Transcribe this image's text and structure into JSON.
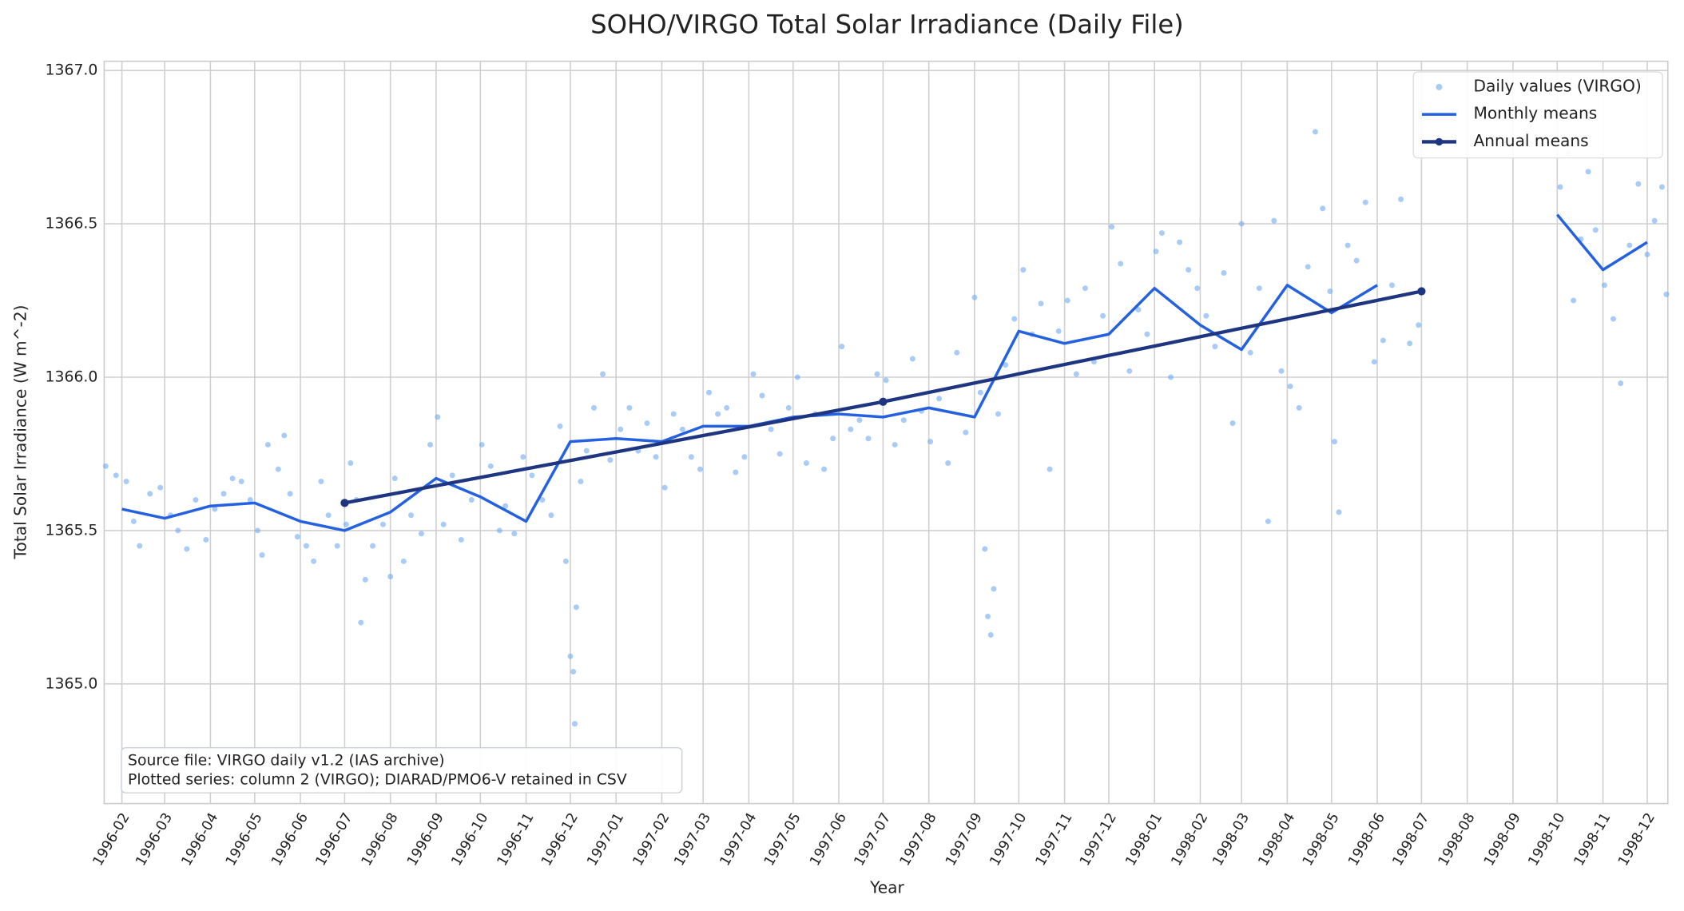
{
  "chart_data": {
    "type": "line",
    "title": "SOHO/VIRGO Total Solar Irradiance (Daily File)",
    "xlabel": "Year",
    "ylabel": "Total Solar Irradiance (W m^-2)",
    "xlim": [
      "1996-01-20",
      "1998-12-15"
    ],
    "ylim": [
      1364.61,
      1367.03
    ],
    "xticks": [
      "1996-02",
      "1996-03",
      "1996-04",
      "1996-05",
      "1996-06",
      "1996-07",
      "1996-08",
      "1996-09",
      "1996-10",
      "1996-11",
      "1996-12",
      "1997-01",
      "1997-02",
      "1997-03",
      "1997-04",
      "1997-05",
      "1997-06",
      "1997-07",
      "1997-08",
      "1997-09",
      "1997-10",
      "1997-11",
      "1997-12",
      "1998-01",
      "1998-02",
      "1998-03",
      "1998-04",
      "1998-05",
      "1998-06",
      "1998-07",
      "1998-08",
      "1998-09",
      "1998-10",
      "1998-11",
      "1998-12"
    ],
    "yticks": [
      {
        "value": 1365,
        "label": "1365.0"
      },
      1365.5,
      {
        "value": 1366,
        "label": "1366.0"
      },
      1366.5,
      {
        "value": 1367,
        "label": "1367.0"
      }
    ],
    "grid": true,
    "legend": "upper right",
    "annotation": [
      "Source file: VIRGO daily v1.2 (IAS archive)",
      "Plotted series: column 2 (VIRGO); DIARAD/PMO6-V retained in CSV"
    ],
    "series": [
      {
        "name": "Daily values (VIRGO)",
        "type": "scatter",
        "color": "#6fa8f2",
        "x": [
          "1996-01-21",
          "1996-01-28",
          "1996-02-04",
          "1996-02-09",
          "1996-02-13",
          "1996-02-20",
          "1996-02-27",
          "1996-03-05",
          "1996-03-10",
          "1996-03-16",
          "1996-03-22",
          "1996-03-29",
          "1996-04-04",
          "1996-04-10",
          "1996-04-16",
          "1996-04-22",
          "1996-04-28",
          "1996-05-03",
          "1996-05-06",
          "1996-05-10",
          "1996-05-17",
          "1996-05-21",
          "1996-05-25",
          "1996-05-30",
          "1996-06-05",
          "1996-06-10",
          "1996-06-15",
          "1996-06-20",
          "1996-06-26",
          "1996-07-02",
          "1996-07-05",
          "1996-07-09",
          "1996-07-12",
          "1996-07-15",
          "1996-07-20",
          "1996-07-27",
          "1996-08-01",
          "1996-08-04",
          "1996-08-10",
          "1996-08-15",
          "1996-08-22",
          "1996-08-28",
          "1996-09-02",
          "1996-09-06",
          "1996-09-12",
          "1996-09-18",
          "1996-09-25",
          "1996-10-02",
          "1996-10-08",
          "1996-10-14",
          "1996-10-18",
          "1996-10-24",
          "1996-10-30",
          "1996-11-05",
          "1996-11-12",
          "1996-11-18",
          "1996-11-24",
          "1996-11-28",
          "1996-12-01",
          "1996-12-03",
          "1996-12-04",
          "1996-12-05",
          "1996-12-08",
          "1996-12-12",
          "1996-12-17",
          "1996-12-23",
          "1996-12-28",
          "1997-01-04",
          "1997-01-10",
          "1997-01-16",
          "1997-01-22",
          "1997-01-28",
          "1997-02-03",
          "1997-02-09",
          "1997-02-15",
          "1997-02-21",
          "1997-02-27",
          "1997-03-05",
          "1997-03-11",
          "1997-03-17",
          "1997-03-23",
          "1997-03-29",
          "1997-04-04",
          "1997-04-10",
          "1997-04-16",
          "1997-04-22",
          "1997-04-28",
          "1997-05-04",
          "1997-05-10",
          "1997-05-16",
          "1997-05-22",
          "1997-05-28",
          "1997-06-03",
          "1997-06-09",
          "1997-06-15",
          "1997-06-21",
          "1997-06-27",
          "1997-07-03",
          "1997-07-09",
          "1997-07-15",
          "1997-07-21",
          "1997-07-27",
          "1997-08-02",
          "1997-08-08",
          "1997-08-14",
          "1997-08-20",
          "1997-08-26",
          "1997-09-01",
          "1997-09-05",
          "1997-09-08",
          "1997-09-10",
          "1997-09-12",
          "1997-09-14",
          "1997-09-17",
          "1997-09-22",
          "1997-09-28",
          "1997-10-04",
          "1997-10-10",
          "1997-10-16",
          "1997-10-22",
          "1997-10-28",
          "1997-11-03",
          "1997-11-09",
          "1997-11-15",
          "1997-11-21",
          "1997-11-27",
          "1997-12-03",
          "1997-12-09",
          "1997-12-15",
          "1997-12-21",
          "1997-12-27",
          "1998-01-02",
          "1998-01-06",
          "1998-01-12",
          "1998-01-18",
          "1998-01-24",
          "1998-01-30",
          "1998-02-05",
          "1998-02-11",
          "1998-02-17",
          "1998-02-23",
          "1998-03-01",
          "1998-03-07",
          "1998-03-13",
          "1998-03-19",
          "1998-03-23",
          "1998-03-28",
          "1998-04-03",
          "1998-04-09",
          "1998-04-15",
          "1998-04-20",
          "1998-04-25",
          "1998-04-30",
          "1998-05-03",
          "1998-05-06",
          "1998-05-12",
          "1998-05-18",
          "1998-05-24",
          "1998-05-30",
          "1998-06-05",
          "1998-06-11",
          "1998-06-17",
          "1998-06-23",
          "1998-06-29",
          "1998-10-03",
          "1998-10-08",
          "1998-10-12",
          "1998-10-17",
          "1998-10-22",
          "1998-10-27",
          "1998-11-02",
          "1998-11-08",
          "1998-11-13",
          "1998-11-19",
          "1998-11-25",
          "1998-12-01",
          "1998-12-06",
          "1998-12-11",
          "1998-12-14"
        ],
        "values": [
          1365.71,
          1365.68,
          1365.66,
          1365.53,
          1365.45,
          1365.62,
          1365.64,
          1365.55,
          1365.5,
          1365.44,
          1365.6,
          1365.47,
          1365.57,
          1365.62,
          1365.67,
          1365.66,
          1365.6,
          1365.5,
          1365.42,
          1365.78,
          1365.7,
          1365.81,
          1365.62,
          1365.48,
          1365.45,
          1365.4,
          1365.66,
          1365.55,
          1365.45,
          1365.52,
          1365.72,
          1365.6,
          1365.2,
          1365.34,
          1365.45,
          1365.52,
          1365.35,
          1365.67,
          1365.4,
          1365.55,
          1365.49,
          1365.78,
          1365.87,
          1365.52,
          1365.68,
          1365.47,
          1365.6,
          1365.78,
          1365.71,
          1365.5,
          1365.58,
          1365.49,
          1365.74,
          1365.68,
          1365.6,
          1365.55,
          1365.84,
          1365.4,
          1365.09,
          1365.04,
          1364.87,
          1365.25,
          1365.66,
          1365.76,
          1365.9,
          1366.01,
          1365.73,
          1365.83,
          1365.9,
          1365.76,
          1365.85,
          1365.74,
          1365.64,
          1365.88,
          1365.83,
          1365.74,
          1365.7,
          1365.95,
          1365.88,
          1365.9,
          1365.69,
          1365.74,
          1366.01,
          1365.94,
          1365.83,
          1365.75,
          1365.9,
          1366.0,
          1365.72,
          1365.88,
          1365.7,
          1365.8,
          1366.1,
          1365.83,
          1365.86,
          1365.8,
          1366.01,
          1365.99,
          1365.78,
          1365.86,
          1366.06,
          1365.89,
          1365.79,
          1365.93,
          1365.72,
          1366.08,
          1365.82,
          1366.26,
          1365.95,
          1365.44,
          1365.22,
          1365.16,
          1365.31,
          1365.88,
          1366.04,
          1366.19,
          1366.35,
          1366.14,
          1366.24,
          1365.7,
          1366.15,
          1366.25,
          1366.01,
          1366.29,
          1366.05,
          1366.2,
          1366.49,
          1366.37,
          1366.02,
          1366.22,
          1366.14,
          1366.41,
          1366.47,
          1366.0,
          1366.44,
          1366.35,
          1366.29,
          1366.2,
          1366.1,
          1366.34,
          1365.85,
          1366.5,
          1366.08,
          1366.29,
          1365.53,
          1366.51,
          1366.02,
          1365.97,
          1365.9,
          1366.36,
          1366.8,
          1366.55,
          1366.28,
          1365.79,
          1365.56,
          1366.43,
          1366.38,
          1366.57,
          1366.05,
          1366.12,
          1366.3,
          1366.58,
          1366.11,
          1366.17,
          1366.62,
          1366.73,
          1366.25,
          1366.45,
          1366.67,
          1366.48,
          1366.3,
          1366.19,
          1365.98,
          1366.43,
          1366.63,
          1366.4,
          1366.51,
          1366.62,
          1366.27
        ]
      },
      {
        "name": "Monthly means",
        "type": "line",
        "color": "#2461e0",
        "x": [
          "1996-02",
          "1996-03",
          "1996-04",
          "1996-05",
          "1996-06",
          "1996-07",
          "1996-08",
          "1996-09",
          "1996-10",
          "1996-11",
          "1996-12",
          "1997-01",
          "1997-02",
          "1997-03",
          "1997-04",
          "1997-05",
          "1997-06",
          "1997-07",
          "1997-08",
          "1997-09",
          "1997-10",
          "1997-11",
          "1997-12",
          "1998-01",
          "1998-02",
          "1998-03",
          "1998-04",
          "1998-05",
          "1998-06",
          "1998-07",
          "1998-08",
          "1998-09",
          "1998-10",
          "1998-11",
          "1998-12"
        ],
        "values": [
          1365.57,
          1365.54,
          1365.58,
          1365.59,
          1365.53,
          1365.5,
          1365.56,
          1365.67,
          1365.61,
          1365.53,
          1365.79,
          1365.8,
          1365.79,
          1365.84,
          1365.84,
          1365.87,
          1365.88,
          1365.87,
          1365.9,
          1365.87,
          1366.15,
          1366.11,
          1366.14,
          1366.29,
          1366.17,
          1366.09,
          1366.3,
          1366.21,
          1366.3,
          null,
          null,
          null,
          1366.53,
          1366.35,
          1366.44
        ]
      },
      {
        "name": "Annual means",
        "type": "line",
        "marker": true,
        "color": "#1e3582",
        "x": [
          "1996-07",
          "1997-07",
          "1998-07"
        ],
        "values": [
          1365.59,
          1365.92,
          1366.28
        ]
      }
    ]
  }
}
